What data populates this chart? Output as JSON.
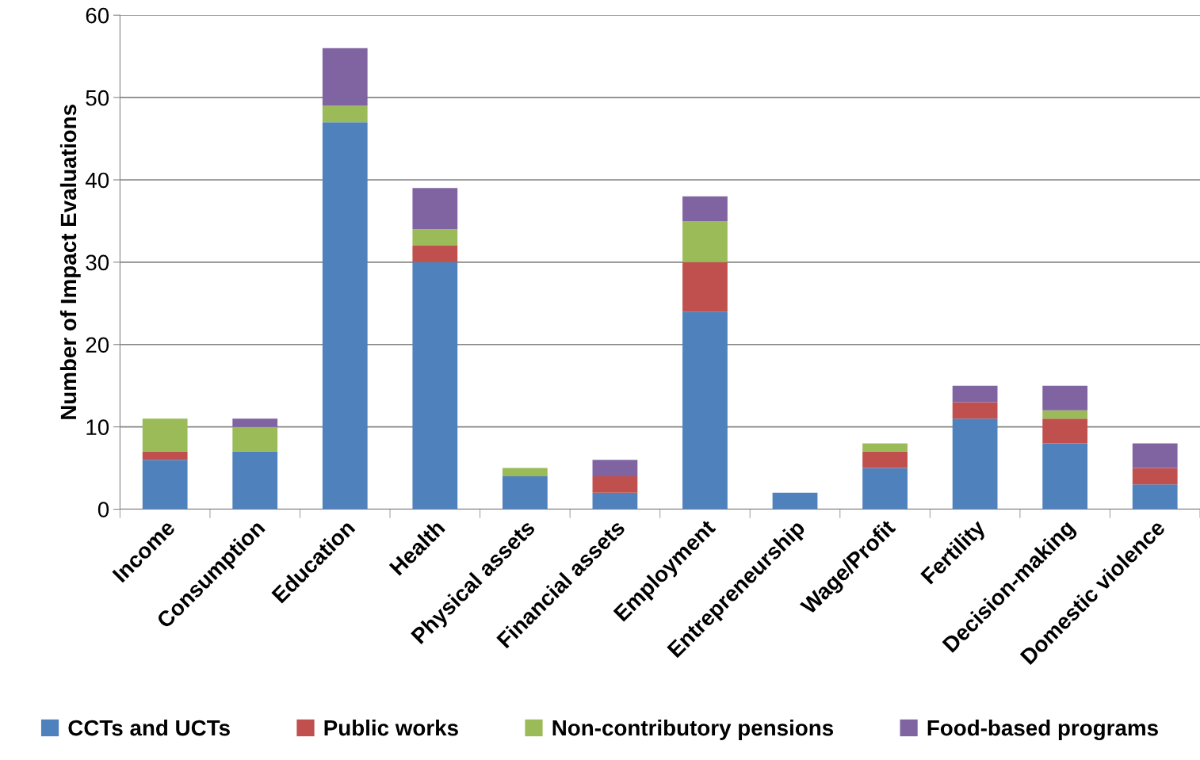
{
  "chart_data": {
    "type": "bar",
    "stacked": true,
    "ylabel": "Number of Impact Evaluations",
    "categories": [
      "Income",
      "Consumption",
      "Education",
      "Health",
      "Physical assets",
      "Financial assets",
      "Employment",
      "Entrepreneurship",
      "Wage/Profit",
      "Fertility",
      "Decision-making",
      "Domestic violence"
    ],
    "series": [
      {
        "name": "CCTs and UCTs",
        "color": "#4f81bd",
        "values": [
          6,
          7,
          47,
          30,
          4,
          2,
          24,
          2,
          5,
          11,
          8,
          3
        ]
      },
      {
        "name": "Public works",
        "color": "#c0504d",
        "values": [
          1,
          0,
          0,
          2,
          0,
          2,
          6,
          0,
          2,
          2,
          3,
          2
        ]
      },
      {
        "name": "Non-contributory pensions",
        "color": "#9bbb59",
        "values": [
          4,
          3,
          2,
          2,
          1,
          0,
          5,
          0,
          1,
          0,
          1,
          0
        ]
      },
      {
        "name": "Food-based programs",
        "color": "#8064a2",
        "values": [
          0,
          1,
          7,
          5,
          0,
          2,
          3,
          0,
          0,
          2,
          3,
          3
        ]
      }
    ],
    "ylim": [
      0,
      60
    ],
    "yticks": [
      0,
      10,
      20,
      30,
      40,
      50,
      60
    ],
    "grid": "y",
    "legend": "bottom"
  }
}
